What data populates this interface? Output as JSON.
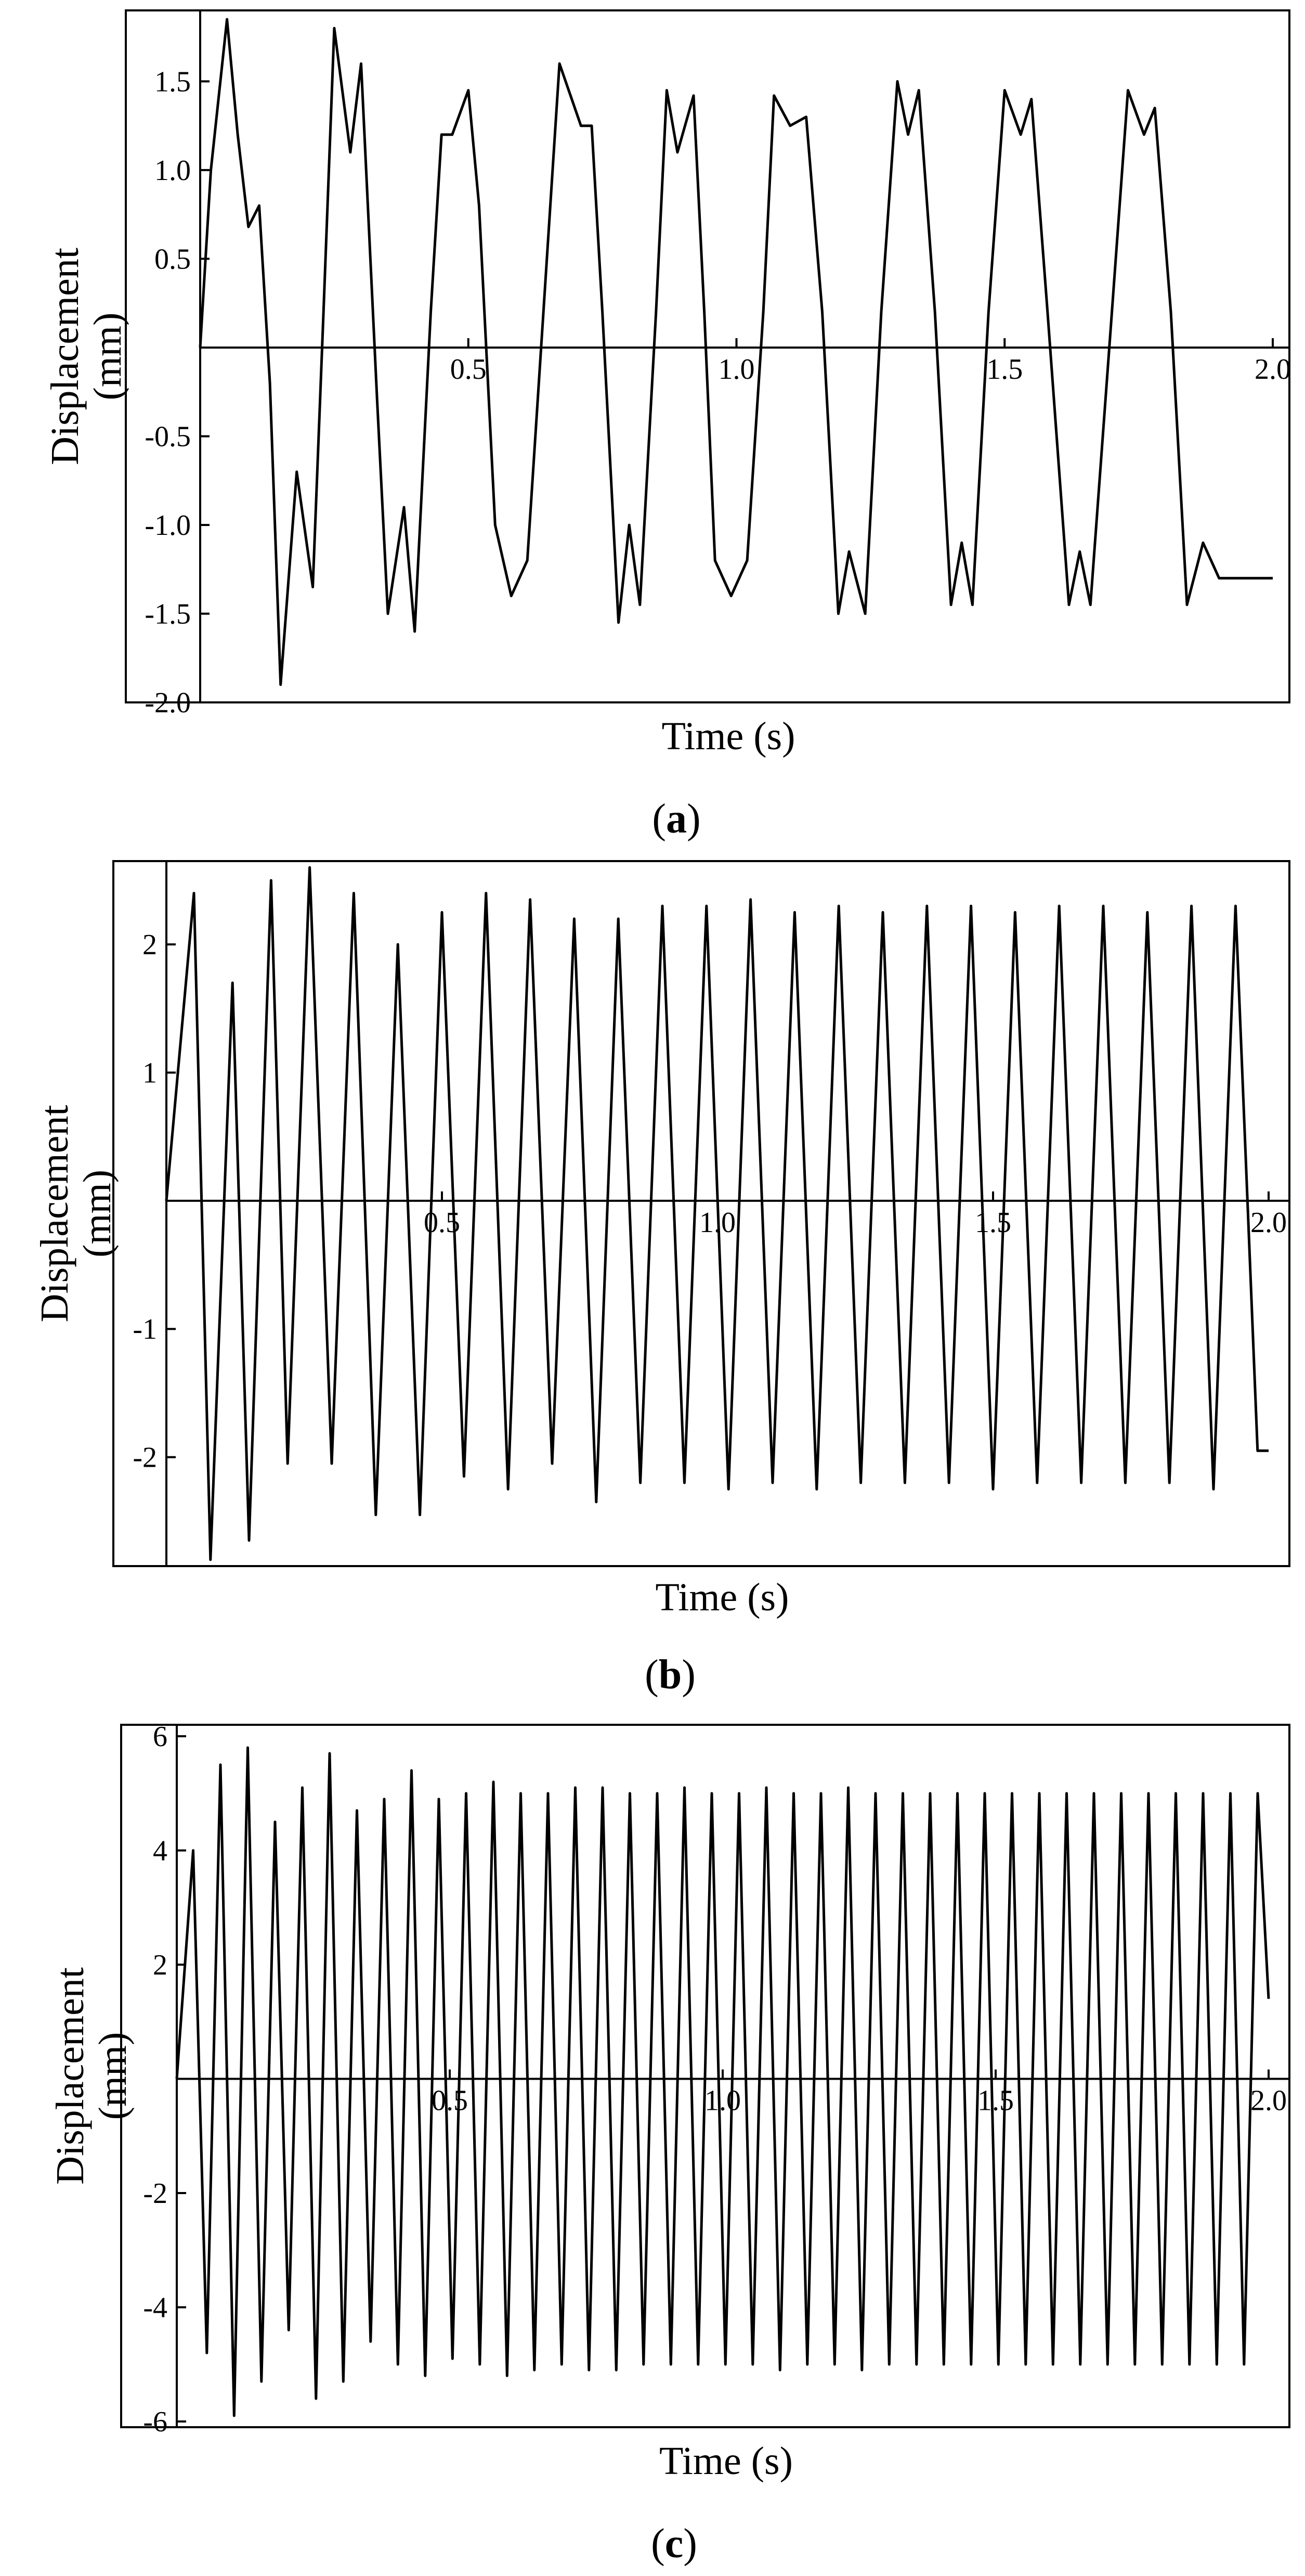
{
  "chart_data": [
    {
      "panel_label": "a",
      "type": "line",
      "xlabel": "Time (s)",
      "ylabel": [
        "Displacement",
        "(mm)"
      ],
      "xlim": [
        0,
        2.0
      ],
      "ylim": [
        -2.0,
        1.9
      ],
      "x_ticks": [
        0.5,
        1.0,
        1.5,
        2.0
      ],
      "x_tick_labels": [
        "0.5",
        "1.0",
        "1.5",
        "2.0"
      ],
      "y_ticks": [
        -2.0,
        -1.5,
        -1.0,
        -0.5,
        0.5,
        1.0,
        1.5
      ],
      "y_tick_labels": [
        "-2.0",
        "-1.5",
        "-1.0",
        "-0.5",
        "0.5",
        "1.0",
        "1.5"
      ],
      "grid": false,
      "series": [
        {
          "x": [
            0.0,
            0.02,
            0.05,
            0.07,
            0.09,
            0.11,
            0.13,
            0.15,
            0.18,
            0.21,
            0.23,
            0.25,
            0.28,
            0.3,
            0.33,
            0.35,
            0.38,
            0.4,
            0.43,
            0.45,
            0.47,
            0.5,
            0.52,
            0.55,
            0.58,
            0.61,
            0.64,
            0.67,
            0.71,
            0.73,
            0.75,
            0.78,
            0.8,
            0.82,
            0.85,
            0.87,
            0.89,
            0.92,
            0.94,
            0.96,
            0.99,
            1.02,
            1.05,
            1.07,
            1.1,
            1.13,
            1.16,
            1.19,
            1.21,
            1.24,
            1.27,
            1.3,
            1.32,
            1.34,
            1.37,
            1.4,
            1.42,
            1.44,
            1.47,
            1.5,
            1.53,
            1.55,
            1.58,
            1.62,
            1.64,
            1.66,
            1.7,
            1.73,
            1.76,
            1.78,
            1.81,
            1.84,
            1.87,
            1.9,
            1.93,
            1.96,
            1.98,
            2.0
          ],
          "y": [
            0.0,
            1.0,
            1.85,
            1.2,
            0.68,
            0.8,
            -0.2,
            -1.9,
            -0.7,
            -1.35,
            0.2,
            1.8,
            1.1,
            1.6,
            -0.3,
            -1.5,
            -0.9,
            -1.6,
            0.2,
            1.2,
            1.2,
            1.45,
            0.8,
            -1.0,
            -1.4,
            -1.2,
            0.2,
            1.6,
            1.25,
            1.25,
            0.2,
            -1.55,
            -1.0,
            -1.45,
            0.2,
            1.45,
            1.1,
            1.42,
            0.2,
            -1.2,
            -1.4,
            -1.2,
            0.2,
            1.42,
            1.25,
            1.3,
            0.2,
            -1.5,
            -1.15,
            -1.5,
            0.2,
            1.5,
            1.2,
            1.45,
            0.2,
            -1.45,
            -1.1,
            -1.45,
            0.2,
            1.45,
            1.2,
            1.4,
            0.2,
            -1.45,
            -1.15,
            -1.45,
            0.2,
            1.45,
            1.2,
            1.35,
            0.2,
            -1.45,
            -1.1,
            -1.3,
            -1.3,
            -1.3,
            -1.3,
            -1.3
          ]
        }
      ]
    },
    {
      "panel_label": "b",
      "type": "line",
      "xlabel": "Time (s)",
      "ylabel": [
        "Displacement",
        "(mm)"
      ],
      "xlim": [
        0,
        2.0
      ],
      "ylim": [
        -2.85,
        2.65
      ],
      "x_ticks": [
        0.5,
        1.0,
        1.5,
        2.0
      ],
      "x_tick_labels": [
        "0.5",
        "1.0",
        "1.5",
        "2.0"
      ],
      "y_ticks": [
        -2,
        -1,
        1,
        2
      ],
      "y_tick_labels": [
        "-2",
        "-1",
        "1",
        "2"
      ],
      "grid": false,
      "series": [
        {
          "x": [
            0.0,
            0.05,
            0.08,
            0.12,
            0.15,
            0.19,
            0.22,
            0.26,
            0.3,
            0.34,
            0.38,
            0.42,
            0.46,
            0.5,
            0.54,
            0.58,
            0.62,
            0.66,
            0.7,
            0.74,
            0.78,
            0.82,
            0.86,
            0.9,
            0.94,
            0.98,
            1.02,
            1.06,
            1.1,
            1.14,
            1.18,
            1.22,
            1.26,
            1.3,
            1.34,
            1.38,
            1.42,
            1.46,
            1.5,
            1.54,
            1.58,
            1.62,
            1.66,
            1.7,
            1.74,
            1.78,
            1.82,
            1.86,
            1.9,
            1.94,
            1.98,
            2.0
          ],
          "y": [
            0.0,
            2.4,
            -2.8,
            1.7,
            -2.65,
            2.5,
            -2.05,
            2.6,
            -2.05,
            2.4,
            -2.45,
            2.0,
            -2.45,
            2.25,
            -2.15,
            2.4,
            -2.25,
            2.35,
            -2.05,
            2.2,
            -2.35,
            2.2,
            -2.2,
            2.3,
            -2.2,
            2.3,
            -2.25,
            2.35,
            -2.2,
            2.25,
            -2.25,
            2.3,
            -2.2,
            2.25,
            -2.2,
            2.3,
            -2.2,
            2.3,
            -2.25,
            2.25,
            -2.2,
            2.3,
            -2.2,
            2.3,
            -2.2,
            2.25,
            -2.2,
            2.3,
            -2.25,
            2.3,
            -1.95,
            -1.95
          ]
        }
      ]
    },
    {
      "panel_label": "c",
      "type": "line",
      "xlabel": "Time (s)",
      "ylabel": [
        "Displacement",
        "(mm)"
      ],
      "xlim": [
        0,
        2.0
      ],
      "ylim": [
        -6.1,
        6.2
      ],
      "x_ticks": [
        0.5,
        1.0,
        1.5,
        2.0
      ],
      "x_tick_labels": [
        "0.5",
        "1.0",
        "1.5",
        "2.0"
      ],
      "y_ticks": [
        -6,
        -4,
        -2,
        2,
        4,
        6
      ],
      "y_tick_labels": [
        "-6",
        "-4",
        "-2",
        "2",
        "4",
        "6"
      ],
      "grid": false,
      "series": [
        {
          "x": [
            0.0,
            0.03,
            0.055,
            0.08,
            0.105,
            0.13,
            0.155,
            0.18,
            0.205,
            0.23,
            0.255,
            0.28,
            0.305,
            0.33,
            0.355,
            0.38,
            0.405,
            0.43,
            0.455,
            0.48,
            0.505,
            0.53,
            0.555,
            0.58,
            0.605,
            0.63,
            0.655,
            0.68,
            0.705,
            0.73,
            0.755,
            0.78,
            0.805,
            0.83,
            0.855,
            0.88,
            0.905,
            0.93,
            0.955,
            0.98,
            1.005,
            1.03,
            1.055,
            1.08,
            1.105,
            1.13,
            1.155,
            1.18,
            1.205,
            1.23,
            1.255,
            1.28,
            1.305,
            1.33,
            1.355,
            1.38,
            1.405,
            1.43,
            1.455,
            1.48,
            1.505,
            1.53,
            1.555,
            1.58,
            1.605,
            1.63,
            1.655,
            1.68,
            1.705,
            1.73,
            1.755,
            1.78,
            1.805,
            1.83,
            1.855,
            1.88,
            1.905,
            1.93,
            1.955,
            1.98,
            2.0
          ],
          "y": [
            0.0,
            4.0,
            -4.8,
            5.5,
            -5.9,
            5.8,
            -5.3,
            4.5,
            -4.4,
            5.1,
            -5.6,
            5.7,
            -5.3,
            4.7,
            -4.6,
            4.9,
            -5.0,
            5.4,
            -5.2,
            4.9,
            -4.9,
            5.0,
            -5.0,
            5.2,
            -5.2,
            5.0,
            -5.1,
            5.0,
            -5.0,
            5.1,
            -5.1,
            5.1,
            -5.1,
            5.0,
            -5.0,
            5.0,
            -5.0,
            5.1,
            -5.0,
            5.0,
            -5.0,
            5.0,
            -5.0,
            5.1,
            -5.1,
            5.0,
            -5.0,
            5.0,
            -5.0,
            5.1,
            -5.1,
            5.0,
            -5.0,
            5.0,
            -5.0,
            5.0,
            -5.0,
            5.0,
            -5.0,
            5.0,
            -5.0,
            5.0,
            -5.0,
            5.0,
            -5.0,
            5.0,
            -5.0,
            5.0,
            -5.0,
            5.0,
            -5.0,
            5.0,
            -5.0,
            5.0,
            -5.0,
            5.0,
            -5.0,
            5.0,
            -5.0,
            5.0,
            1.4
          ]
        }
      ]
    }
  ]
}
